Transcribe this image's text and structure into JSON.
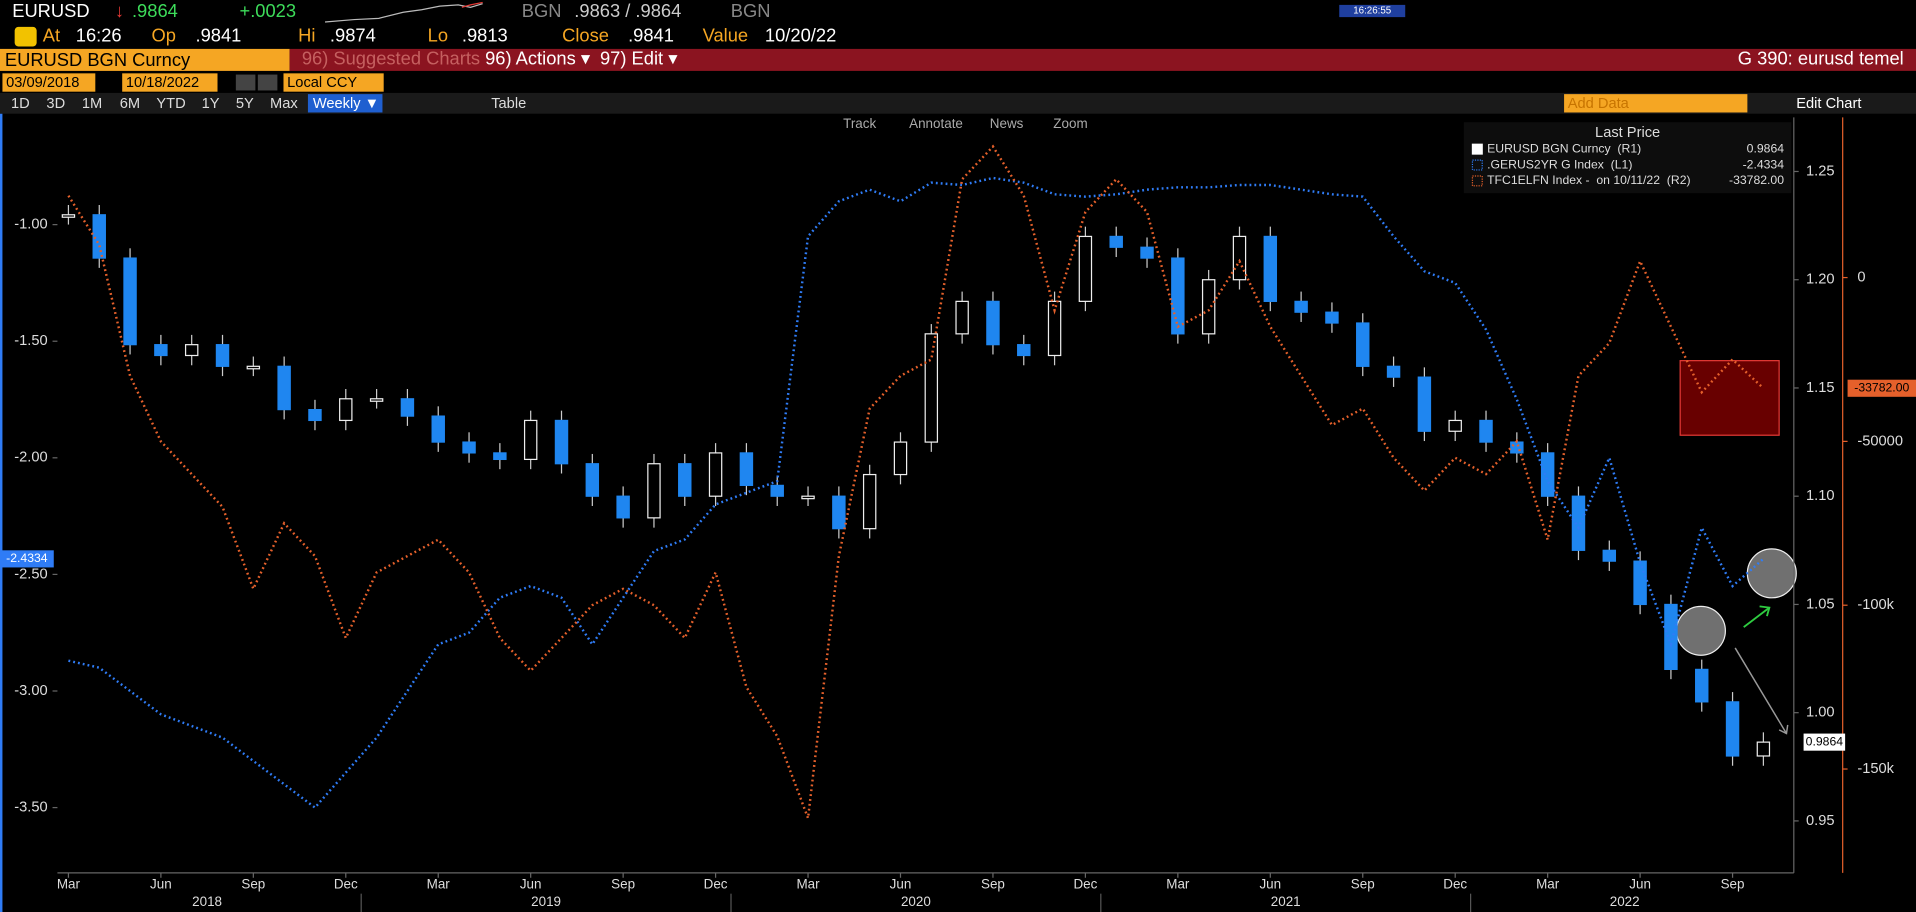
{
  "header": {
    "ticker": "EURUSD",
    "direction": "↓",
    "last": ".9864",
    "change": "+.0023",
    "source": "BGN",
    "bid_ask": ".9863 / .9864",
    "source_2": "BGN",
    "clock": "16:26:55"
  },
  "quote": [
    {
      "label": "At",
      "value": "16:26"
    },
    {
      "label": "Op",
      "value": ".9841"
    },
    {
      "label": "Hi",
      "value": ".9874"
    },
    {
      "label": "Lo",
      "value": ".9813"
    },
    {
      "label": "Close",
      "value": ".9841"
    },
    {
      "label": "Value",
      "value": "10/20/22"
    }
  ],
  "menu": {
    "security": "EURUSD BGN Curncy",
    "items": [
      "96) Suggested Charts",
      "96) Actions ▾",
      "97) Edit ▾"
    ],
    "page_title": "G 390: eurusd temel"
  },
  "range": {
    "start": "03/09/2018",
    "end": "10/18/2022",
    "currency": "Local CCY"
  },
  "toolbar": {
    "periods": [
      "1D",
      "3D",
      "1M",
      "6M",
      "YTD",
      "1Y",
      "5Y",
      "Max"
    ],
    "frequency": "Weekly ▼",
    "table": "Table",
    "add_data": "Add Data",
    "edit_chart": "Edit Chart"
  },
  "chart_tools": [
    "Track",
    "Annotate",
    "News",
    "Zoom"
  ],
  "chart_data": {
    "type": "line",
    "legend_title": "Last Price",
    "legend": "top-right",
    "x": [
      "2018-03",
      "2018-04",
      "2018-05",
      "2018-06",
      "2018-07",
      "2018-08",
      "2018-09",
      "2018-10",
      "2018-11",
      "2018-12",
      "2019-01",
      "2019-02",
      "2019-03",
      "2019-04",
      "2019-05",
      "2019-06",
      "2019-07",
      "2019-08",
      "2019-09",
      "2019-10",
      "2019-11",
      "2019-12",
      "2020-01",
      "2020-02",
      "2020-03",
      "2020-04",
      "2020-05",
      "2020-06",
      "2020-07",
      "2020-08",
      "2020-09",
      "2020-10",
      "2020-11",
      "2020-12",
      "2021-01",
      "2021-02",
      "2021-03",
      "2021-04",
      "2021-05",
      "2021-06",
      "2021-07",
      "2021-08",
      "2021-09",
      "2021-10",
      "2021-11",
      "2021-12",
      "2022-01",
      "2022-02",
      "2022-03",
      "2022-04",
      "2022-05",
      "2022-06",
      "2022-07",
      "2022-08",
      "2022-09",
      "2022-10"
    ],
    "xticks": [
      {
        "value": "2018-03",
        "label": "Mar"
      },
      {
        "value": "2018-06",
        "label": "Jun"
      },
      {
        "value": "2018-09",
        "label": "Sep"
      },
      {
        "value": "2018-12",
        "label": "Dec"
      },
      {
        "value": "2019-03",
        "label": "Mar"
      },
      {
        "value": "2019-06",
        "label": "Jun"
      },
      {
        "value": "2019-09",
        "label": "Sep"
      },
      {
        "value": "2019-12",
        "label": "Dec"
      },
      {
        "value": "2020-03",
        "label": "Mar"
      },
      {
        "value": "2020-06",
        "label": "Jun"
      },
      {
        "value": "2020-09",
        "label": "Sep"
      },
      {
        "value": "2020-12",
        "label": "Dec"
      },
      {
        "value": "2021-03",
        "label": "Mar"
      },
      {
        "value": "2021-06",
        "label": "Jun"
      },
      {
        "value": "2021-09",
        "label": "Sep"
      },
      {
        "value": "2021-12",
        "label": "Dec"
      },
      {
        "value": "2022-03",
        "label": "Mar"
      },
      {
        "value": "2022-06",
        "label": "Jun"
      },
      {
        "value": "2022-09",
        "label": "Sep"
      }
    ],
    "years": [
      2018,
      2019,
      2020,
      2021,
      2022
    ],
    "ylim": [
      -3.78,
      -0.54
    ],
    "yticks": [
      {
        "value": -1,
        "label": "-1.00"
      },
      {
        "value": -1.5,
        "label": "-1.50"
      },
      {
        "value": -2,
        "label": "-2.00"
      },
      {
        "value": -2.5,
        "label": "-2.50"
      },
      {
        "value": -3,
        "label": "-3.00"
      },
      {
        "value": -3.5,
        "label": "-3.50"
      }
    ],
    "y2lim": [
      0.926,
      1.275
    ],
    "y2ticks": [
      0.95,
      {
        "value": 1,
        "label": "1.00"
      },
      1.05,
      {
        "value": 1.1,
        "label": "1.10"
      },
      1.15,
      {
        "value": 1.2,
        "label": "1.20"
      },
      1.25
    ],
    "y3lim": [
      -181700,
      48900
    ],
    "y3ticks": [
      0,
      -50000,
      {
        "value": -100000,
        "label": "-100k"
      },
      {
        "value": -150000,
        "label": "-150k"
      }
    ],
    "series": [
      {
        "name": "EURUSD BGN Curncy  (R1)",
        "type": "candlestick",
        "axis": "y2",
        "color": "#1f86f0",
        "last_label": "0.9864",
        "values": [
          1.23,
          1.21,
          1.17,
          1.165,
          1.17,
          1.16,
          1.16,
          1.14,
          1.135,
          1.145,
          1.145,
          1.137,
          1.125,
          1.12,
          1.117,
          1.135,
          1.115,
          1.1,
          1.09,
          1.115,
          1.1,
          1.12,
          1.105,
          1.1,
          1.1,
          1.085,
          1.11,
          1.125,
          1.175,
          1.19,
          1.17,
          1.165,
          1.19,
          1.22,
          1.215,
          1.21,
          1.175,
          1.2,
          1.22,
          1.19,
          1.185,
          1.18,
          1.16,
          1.155,
          1.13,
          1.135,
          1.125,
          1.12,
          1.1,
          1.075,
          1.07,
          1.05,
          1.02,
          1.005,
          0.98,
          0.9864
        ]
      },
      {
        "name": ".GERUS2YR G Index  (L1)",
        "type": "line",
        "axis": "y",
        "color": "#2f7cf6",
        "last_label": "-2.4334",
        "values": [
          -2.87,
          -2.9,
          -3,
          -3.1,
          -3.15,
          -3.2,
          -3.3,
          -3.4,
          -3.5,
          -3.35,
          -3.2,
          -3,
          -2.8,
          -2.75,
          -2.6,
          -2.55,
          -2.6,
          -2.8,
          -2.6,
          -2.4,
          -2.35,
          -2.2,
          -2.15,
          -2.1,
          -1.05,
          -0.9,
          -0.85,
          -0.9,
          -0.82,
          -0.83,
          -0.8,
          -0.82,
          -0.87,
          -0.88,
          -0.87,
          -0.85,
          -0.84,
          -0.84,
          -0.83,
          -0.83,
          -0.85,
          -0.87,
          -0.88,
          -1.05,
          -1.2,
          -1.25,
          -1.45,
          -1.75,
          -2.1,
          -2.3,
          -2,
          -2.45,
          -2.8,
          -2.3,
          -2.55,
          -2.4334
        ]
      },
      {
        "name": "TFC1ELFN Index -  on 10/11/22  (R2)",
        "type": "line",
        "axis": "y3",
        "color": "#e5602b",
        "last_label": "-33782.00",
        "values": [
          25000,
          10000,
          -30000,
          -50000,
          -60000,
          -70000,
          -95000,
          -75000,
          -85000,
          -110000,
          -90000,
          -85000,
          -80000,
          -90000,
          -110000,
          -120000,
          -110000,
          -100000,
          -95000,
          -100000,
          -110000,
          -90000,
          -125000,
          -140000,
          -165000,
          -85000,
          -40000,
          -30000,
          -25000,
          30000,
          40000,
          25000,
          -10000,
          20000,
          30000,
          20000,
          -15000,
          -10000,
          5000,
          -15000,
          -30000,
          -45000,
          -40000,
          -55000,
          -65000,
          -55000,
          -60000,
          -50000,
          -80000,
          -30000,
          -20000,
          5000,
          -15000,
          -35000,
          -25000,
          -33782
        ]
      }
    ]
  }
}
